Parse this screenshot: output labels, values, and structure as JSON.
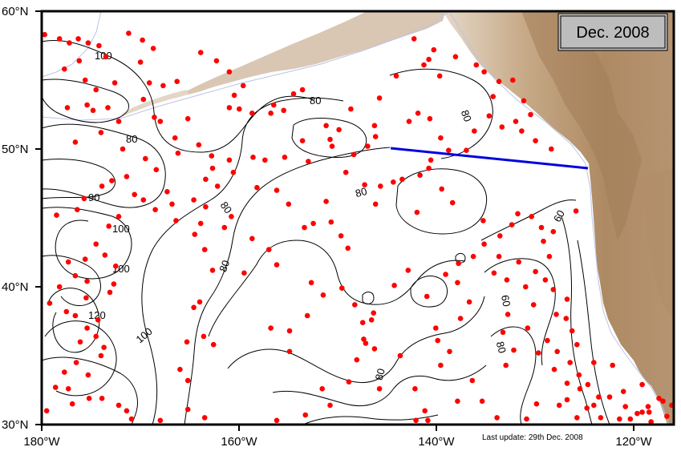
{
  "date_label": "Dec. 2008",
  "last_update": "Last update: 29th Dec. 2008",
  "colors": {
    "ocean": "#ffffff",
    "land_high": "#a8835c",
    "land_mid": "#c8ab8a",
    "land_low": "#e2d3c1",
    "float_dot": "#ff0000",
    "section_line": "#0000dd",
    "contour": "#000000",
    "coastline": "#b9c4e8",
    "badge_fill": "#bdbdbd"
  },
  "axes": {
    "lat_labels": [
      "60°N",
      "50°N",
      "40°N",
      "30°N"
    ],
    "lon_labels": [
      "180°W",
      "160°W",
      "140°W",
      "120°W"
    ]
  },
  "contour_labels": [
    "100",
    "80",
    "90",
    "100",
    "100",
    "120",
    "100",
    "80",
    "80",
    "80",
    "80",
    "80",
    "60",
    "60",
    "80",
    "80"
  ],
  "section_line": {
    "from": [
      "145°W",
      "50°N"
    ],
    "to": [
      "126.5°W",
      "48.5°N"
    ]
  },
  "floats": [
    [
      -179.7,
      58.3
    ],
    [
      -178.2,
      58.0
    ],
    [
      -177.2,
      57.7
    ],
    [
      -176.3,
      58.0
    ],
    [
      -175.3,
      57.7
    ],
    [
      -174.2,
      57.5
    ],
    [
      -173.5,
      56.7
    ],
    [
      -176.2,
      56.4
    ],
    [
      -177.7,
      55.8
    ],
    [
      -175.6,
      55.0
    ],
    [
      -172.6,
      54.8
    ],
    [
      -174.5,
      54.3
    ],
    [
      -173.3,
      53.0
    ],
    [
      -175.4,
      53.2
    ],
    [
      -174.8,
      52.8
    ],
    [
      -177.4,
      53.0
    ],
    [
      -172.2,
      52.0
    ],
    [
      -174.0,
      51.2
    ],
    [
      -176.6,
      50.5
    ],
    [
      -171.8,
      50.0
    ],
    [
      -169.5,
      49.3
    ],
    [
      -168.4,
      48.5
    ],
    [
      -171.4,
      48.0
    ],
    [
      -172.9,
      47.7
    ],
    [
      -173.9,
      47.3
    ],
    [
      -170.6,
      46.7
    ],
    [
      -169.7,
      46.3
    ],
    [
      -167.3,
      46.9
    ],
    [
      -166.8,
      46.0
    ],
    [
      -168.5,
      45.6
    ],
    [
      -166.4,
      44.8
    ],
    [
      -163.9,
      44.6
    ],
    [
      -164.6,
      46.3
    ],
    [
      -175.7,
      46.4
    ],
    [
      -176.4,
      45.6
    ],
    [
      -178.5,
      45.2
    ],
    [
      -172.2,
      45.1
    ],
    [
      -173.2,
      44.4
    ],
    [
      -174.5,
      43.1
    ],
    [
      -173.6,
      42.3
    ],
    [
      -175.6,
      42.0
    ],
    [
      -177.3,
      41.8
    ],
    [
      -172.5,
      41.5
    ],
    [
      -176.6,
      40.8
    ],
    [
      -175.4,
      40.4
    ],
    [
      -172.7,
      40.2
    ],
    [
      -178.2,
      40.0
    ],
    [
      -173.1,
      39.6
    ],
    [
      -175.5,
      39.2
    ],
    [
      -179.2,
      38.8
    ],
    [
      -177.5,
      38.2
    ],
    [
      -176.6,
      37.9
    ],
    [
      -174.3,
      37.6
    ],
    [
      -175.4,
      37.0
    ],
    [
      -174.5,
      36.4
    ],
    [
      -176.1,
      36.0
    ],
    [
      -173.7,
      35.6
    ],
    [
      -174.0,
      35.0
    ],
    [
      -176.5,
      34.5
    ],
    [
      -177.7,
      33.8
    ],
    [
      -175.3,
      33.6
    ],
    [
      -178.6,
      32.7
    ],
    [
      -177.3,
      32.6
    ],
    [
      -176.9,
      31.5
    ],
    [
      -175.2,
      31.9
    ],
    [
      -173.9,
      31.9
    ],
    [
      -172.2,
      31.4
    ],
    [
      -171.4,
      31.0
    ],
    [
      -170.9,
      30.4
    ],
    [
      -179.5,
      31.0
    ],
    [
      -168.0,
      30.3
    ],
    [
      -169.1,
      29.9
    ],
    [
      -165.2,
      31.1
    ],
    [
      -163.5,
      30.5
    ],
    [
      -165.3,
      36.0
    ],
    [
      -165.2,
      33.2
    ],
    [
      -166.0,
      34.0
    ],
    [
      -164.6,
      38.5
    ],
    [
      -164.0,
      38.9
    ],
    [
      -163.6,
      36.4
    ],
    [
      -162.6,
      35.8
    ],
    [
      -163.5,
      42.7
    ],
    [
      -162.7,
      41.2
    ],
    [
      -161.5,
      44.3
    ],
    [
      -160.8,
      45.1
    ],
    [
      -162.2,
      47.3
    ],
    [
      -160.6,
      48.3
    ],
    [
      -161.0,
      49.2
    ],
    [
      -165.2,
      52.2
    ],
    [
      -161.0,
      53.0
    ],
    [
      -160.0,
      52.9
    ],
    [
      -158.7,
      52.6
    ],
    [
      -156.8,
      52.6
    ],
    [
      -155.5,
      52.8
    ],
    [
      -156.5,
      53.2
    ],
    [
      -154.5,
      54.0
    ],
    [
      -153.6,
      54.3
    ],
    [
      -158.7,
      43.5
    ],
    [
      -157.0,
      42.7
    ],
    [
      -156.2,
      41.6
    ],
    [
      -159.5,
      41.0
    ],
    [
      -158.2,
      47.2
    ],
    [
      -156.2,
      47.0
    ],
    [
      -155.0,
      46.0
    ],
    [
      -153.4,
      44.3
    ],
    [
      -152.5,
      44.6
    ],
    [
      -151.2,
      46.2
    ],
    [
      -150.7,
      44.7
    ],
    [
      -149.7,
      43.7
    ],
    [
      -149.0,
      42.8
    ],
    [
      -152.7,
      40.3
    ],
    [
      -151.5,
      39.4
    ],
    [
      -149.6,
      39.9
    ],
    [
      -148.3,
      38.7
    ],
    [
      -147.5,
      37.4
    ],
    [
      -146.4,
      38.1
    ],
    [
      -147.2,
      35.9
    ],
    [
      -146.3,
      35.5
    ],
    [
      -148.1,
      34.7
    ],
    [
      -148.9,
      33.1
    ],
    [
      -151.6,
      32.6
    ],
    [
      -150.8,
      31.4
    ],
    [
      -153.3,
      30.7
    ],
    [
      -156.2,
      30.3
    ],
    [
      -157.9,
      29.6
    ],
    [
      -154.9,
      36.8
    ],
    [
      -156.8,
      37.0
    ],
    [
      -153.1,
      37.9
    ],
    [
      -154.9,
      35.3
    ],
    [
      -147.4,
      36.2
    ],
    [
      -143.7,
      35.0
    ],
    [
      -145.8,
      32.6
    ],
    [
      -142.2,
      32.6
    ],
    [
      -141.2,
      31.0
    ],
    [
      -142.1,
      30.3
    ],
    [
      -140.9,
      30.3
    ],
    [
      -139.3,
      29.8
    ],
    [
      -137.9,
      31.7
    ],
    [
      -139.6,
      34.3
    ],
    [
      -138.7,
      35.3
    ],
    [
      -139.9,
      36.1
    ],
    [
      -140.1,
      37.0
    ],
    [
      -137.6,
      37.7
    ],
    [
      -136.7,
      38.9
    ],
    [
      -137.9,
      40.3
    ],
    [
      -139.1,
      40.9
    ],
    [
      -137.8,
      41.7
    ],
    [
      -136.3,
      42.2
    ],
    [
      -135.2,
      43.1
    ],
    [
      -133.6,
      43.7
    ],
    [
      -132.4,
      44.5
    ],
    [
      -131.8,
      45.3
    ],
    [
      -130.4,
      45.1
    ],
    [
      -129.4,
      44.3
    ],
    [
      -128.6,
      42.2
    ],
    [
      -130.0,
      41.1
    ],
    [
      -129.0,
      40.5
    ],
    [
      -128.2,
      39.8
    ],
    [
      -126.8,
      39.1
    ],
    [
      -127.9,
      38.0
    ],
    [
      -126.9,
      37.7
    ],
    [
      -128.8,
      36.1
    ],
    [
      -127.8,
      35.3
    ],
    [
      -126.5,
      34.5
    ],
    [
      -125.6,
      33.6
    ],
    [
      -126.8,
      33.0
    ],
    [
      -125.5,
      32.6
    ],
    [
      -124.7,
      32.9
    ],
    [
      -123.6,
      32.0
    ],
    [
      -124.1,
      31.4
    ],
    [
      -122.5,
      32.0
    ],
    [
      -120.9,
      31.3
    ],
    [
      -119.7,
      30.8
    ],
    [
      -118.6,
      31.3
    ],
    [
      -117.5,
      31.9
    ],
    [
      -116.7,
      30.6
    ],
    [
      -120.4,
      30.4
    ],
    [
      -130.9,
      30.4
    ],
    [
      -129.9,
      31.5
    ],
    [
      -133.9,
      30.5
    ],
    [
      -135.4,
      31.7
    ],
    [
      -136.4,
      33.2
    ],
    [
      -133.0,
      34.3
    ],
    [
      -132.2,
      35.4
    ],
    [
      -133.3,
      36.7
    ],
    [
      -132.8,
      38.0
    ],
    [
      -130.2,
      38.7
    ],
    [
      -131.0,
      40.0
    ],
    [
      -132.9,
      40.5
    ],
    [
      -134.2,
      41.0
    ],
    [
      -133.7,
      42.2
    ],
    [
      -131.7,
      41.8
    ],
    [
      -135.3,
      44.8
    ],
    [
      -142.0,
      45.4
    ],
    [
      -142.9,
      41.2
    ],
    [
      -144.3,
      40.1
    ],
    [
      -141.0,
      39.3
    ],
    [
      -146.6,
      37.6
    ],
    [
      -143.5,
      47.8
    ],
    [
      -141.7,
      48.1
    ],
    [
      -140.6,
      49.2
    ],
    [
      -140.8,
      48.6
    ],
    [
      -139.5,
      47.1
    ],
    [
      -138.4,
      46.1
    ],
    [
      -144.4,
      47.6
    ],
    [
      -145.7,
      47.3
    ],
    [
      -146.2,
      46.0
    ],
    [
      -147.3,
      47.4
    ],
    [
      -147.0,
      50.2
    ],
    [
      -146.2,
      50.9
    ],
    [
      -148.4,
      49.6
    ],
    [
      -149.2,
      48.3
    ],
    [
      -149.9,
      51.4
    ],
    [
      -151.2,
      51.7
    ],
    [
      -150.8,
      50.7
    ],
    [
      -146.3,
      51.7
    ],
    [
      -142.8,
      52.0
    ],
    [
      -141.9,
      52.6
    ],
    [
      -140.7,
      52.2
    ],
    [
      -139.6,
      50.8
    ],
    [
      -138.8,
      49.9
    ],
    [
      -137.0,
      49.9
    ],
    [
      -136.2,
      51.3
    ],
    [
      -134.7,
      52.4
    ],
    [
      -133.4,
      51.6
    ],
    [
      -132.0,
      52.0
    ],
    [
      -131.4,
      51.3
    ],
    [
      -130.0,
      50.6
    ],
    [
      -128.4,
      50.0
    ],
    [
      -134.3,
      53.8
    ],
    [
      -133.7,
      54.9
    ],
    [
      -135.2,
      55.6
    ],
    [
      -136.0,
      56.1
    ],
    [
      -132.3,
      55.0
    ],
    [
      -131.2,
      53.5
    ],
    [
      -130.5,
      52.5
    ],
    [
      -139.7,
      55.3
    ],
    [
      -141.3,
      56.1
    ],
    [
      -142.3,
      58.0
    ],
    [
      -140.8,
      56.5
    ],
    [
      -138.1,
      56.7
    ],
    [
      -140.3,
      57.2
    ],
    [
      -144.1,
      55.3
    ],
    [
      -145.8,
      53.7
    ],
    [
      -148.7,
      52.9
    ],
    [
      -153.6,
      50.6
    ],
    [
      -155.4,
      49.4
    ],
    [
      -153.0,
      49.1
    ],
    [
      -157.4,
      49.2
    ],
    [
      -158.6,
      49.4
    ],
    [
      -150.6,
      50.2
    ],
    [
      -168.0,
      52.0
    ],
    [
      -166.2,
      49.7
    ],
    [
      -164.1,
      50.3
    ],
    [
      -162.8,
      49.5
    ],
    [
      -162.7,
      48.6
    ],
    [
      -163.4,
      47.8
    ],
    [
      -163.4,
      45.8
    ],
    [
      -164.5,
      43.8
    ],
    [
      -171.2,
      58.4
    ],
    [
      -169.8,
      57.9
    ],
    [
      -168.7,
      57.3
    ],
    [
      -170.0,
      56.3
    ],
    [
      -163.9,
      57.0
    ],
    [
      -162.3,
      56.4
    ],
    [
      -161.0,
      55.6
    ],
    [
      -160.5,
      53.9
    ],
    [
      -159.6,
      54.6
    ],
    [
      -166.3,
      54.9
    ],
    [
      -167.7,
      54.6
    ],
    [
      -169.1,
      54.8
    ],
    [
      -169.7,
      53.6
    ],
    [
      -168.6,
      52.3
    ],
    [
      -166.5,
      50.8
    ],
    [
      -121.1,
      32.4
    ],
    [
      -119.2,
      32.9
    ],
    [
      -122.2,
      34.3
    ],
    [
      -124.1,
      34.5
    ],
    [
      -125.8,
      35.8
    ],
    [
      -126.3,
      36.8
    ],
    [
      -130.8,
      37.0
    ],
    [
      -129.7,
      35.2
    ],
    [
      -128.1,
      34.0
    ],
    [
      -126.8,
      31.8
    ],
    [
      -127.6,
      31.4
    ],
    [
      -118.5,
      30.9
    ],
    [
      -117.1,
      31.7
    ],
    [
      -116.2,
      31.4
    ],
    [
      -123.4,
      30.5
    ],
    [
      -124.8,
      31.2
    ],
    [
      -125.8,
      30.5
    ],
    [
      -121.5,
      30.4
    ],
    [
      -119.2,
      30.9
    ],
    [
      -118.3,
      30.2
    ],
    [
      -115.8,
      30.7
    ],
    [
      -115.4,
      30.3
    ],
    [
      -129.2,
      43.3
    ],
    [
      -128.2,
      44.0
    ],
    [
      -125.9,
      45.5
    ]
  ]
}
